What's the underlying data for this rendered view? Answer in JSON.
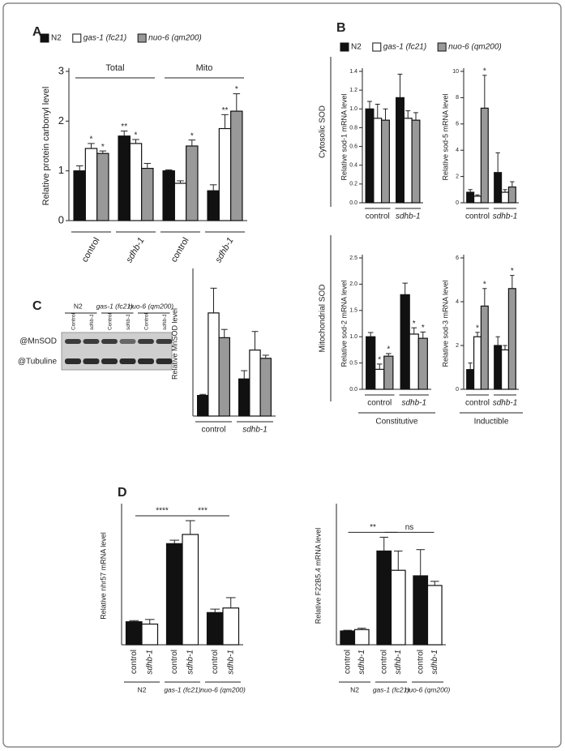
{
  "chart_data": [
    {
      "type": "bar",
      "panel": "A",
      "ylabel": "Relative protein carbonyl level",
      "legend": true,
      "groups": [
        "Total",
        "Mito"
      ],
      "categories": [
        "control",
        "sdhb-1",
        "control",
        "sdhb-1"
      ],
      "series": [
        {
          "name": "N2",
          "color": "#111111",
          "values": [
            1.0,
            1.7,
            1.0,
            0.6
          ],
          "errors": [
            0.1,
            0.1,
            0.02,
            0.12
          ],
          "stars": [
            null,
            "**",
            null,
            null
          ]
        },
        {
          "name": "gas-1 (fc21)",
          "color": "#ffffff",
          "values": [
            1.45,
            1.55,
            0.75,
            1.85
          ],
          "errors": [
            0.1,
            0.08,
            0.05,
            0.28
          ],
          "stars": [
            "*",
            "*",
            null,
            "**"
          ]
        },
        {
          "name": "nuo-6 (qm200)",
          "color": "#999999",
          "values": [
            1.35,
            1.05,
            1.5,
            2.2
          ],
          "errors": [
            0.05,
            0.1,
            0.12,
            0.35
          ],
          "stars": [
            "*",
            null,
            "*",
            "*"
          ]
        }
      ],
      "ylim": [
        0,
        3
      ],
      "yticks": [
        0,
        1,
        2,
        3
      ]
    },
    {
      "type": "bar",
      "panel": "B",
      "section": "Cytosolic SOD",
      "ylabel": "Relative sod-1 mRNA level",
      "legend": true,
      "categories": [
        "control",
        "sdhb-1"
      ],
      "series": [
        {
          "name": "N2",
          "color": "#111111",
          "values": [
            1.0,
            1.12
          ],
          "errors": [
            0.08,
            0.25
          ]
        },
        {
          "name": "gas-1 (fc21)",
          "color": "#ffffff",
          "values": [
            0.9,
            0.9
          ],
          "errors": [
            0.15,
            0.08
          ]
        },
        {
          "name": "nuo-6 (qm200)",
          "color": "#999999",
          "values": [
            0.88,
            0.88
          ],
          "errors": [
            0.12,
            0.08
          ]
        }
      ],
      "ylim": [
        0,
        1.4
      ],
      "yticks": [
        {
          "value": 0,
          "label": "0.0"
        },
        0.2,
        0.4,
        0.6,
        0.8,
        {
          "value": 1,
          "label": "1.0"
        },
        1.2,
        1.4
      ]
    },
    {
      "type": "bar",
      "ylabel": "Relative sod-5 mRNA level",
      "categories": [
        "control",
        "sdhb-1"
      ],
      "series": [
        {
          "name": "N2",
          "color": "#111111",
          "values": [
            0.8,
            2.3
          ],
          "errors": [
            0.2,
            1.5
          ]
        },
        {
          "name": "gas-1 (fc21)",
          "color": "#ffffff",
          "values": [
            0.5,
            0.8
          ],
          "errors": [
            0.1,
            0.2
          ]
        },
        {
          "name": "nuo-6 (qm200)",
          "color": "#999999",
          "values": [
            7.2,
            1.2
          ],
          "errors": [
            2.5,
            0.4
          ],
          "stars": [
            "*",
            null
          ]
        }
      ],
      "ylim": [
        0,
        10
      ],
      "yticks": [
        0,
        2,
        4,
        6,
        8,
        10
      ]
    },
    {
      "type": "bar",
      "section": "Mitochondrial SOD",
      "group_label": "Constitutive",
      "ylabel": "Relative sod-2 mRNA level",
      "categories": [
        "control",
        "sdhb-1"
      ],
      "series": [
        {
          "name": "N2",
          "color": "#111111",
          "values": [
            1.0,
            1.8
          ],
          "errors": [
            0.08,
            0.22
          ]
        },
        {
          "name": "gas-1 (fc21)",
          "color": "#ffffff",
          "values": [
            0.38,
            1.05
          ],
          "errors": [
            0.1,
            0.12
          ],
          "stars": [
            "*",
            "*"
          ]
        },
        {
          "name": "nuo-6 (qm200)",
          "color": "#999999",
          "values": [
            0.63,
            0.97
          ],
          "errors": [
            0.05,
            0.12
          ],
          "stars": [
            "*",
            "*"
          ]
        }
      ],
      "ylim": [
        0,
        2.5
      ],
      "yticks": [
        {
          "value": 0,
          "label": "0.0"
        },
        0.5,
        {
          "value": 1,
          "label": "1.0"
        },
        1.5,
        {
          "value": 2,
          "label": "2.0"
        },
        2.5
      ]
    },
    {
      "type": "bar",
      "group_label": "Inductible",
      "ylabel": "Relative sod-3 mRNA level",
      "categories": [
        "control",
        "sdhb-1"
      ],
      "series": [
        {
          "name": "N2",
          "color": "#111111",
          "values": [
            0.9,
            2.0
          ],
          "errors": [
            0.3,
            0.4
          ]
        },
        {
          "name": "gas-1 (fc21)",
          "color": "#ffffff",
          "values": [
            2.4,
            1.8
          ],
          "errors": [
            0.2,
            0.2
          ],
          "stars": [
            "*",
            null
          ]
        },
        {
          "name": "nuo-6 (qm200)",
          "color": "#999999",
          "values": [
            3.8,
            4.6
          ],
          "errors": [
            0.8,
            0.6
          ],
          "stars": [
            "*",
            "*"
          ]
        }
      ],
      "ylim": [
        0,
        6
      ],
      "yticks": [
        0,
        2,
        4,
        6
      ]
    },
    {
      "type": "bar",
      "panel": "C",
      "ylabel": "Relative MnSOD level",
      "categories": [
        "control",
        "sdhb-1"
      ],
      "series": [
        {
          "name": "N2",
          "color": "#111111",
          "values": [
            1.0,
            1.8
          ],
          "errors": [
            0.05,
            0.4
          ]
        },
        {
          "name": "gas-1 (fc21)",
          "color": "#ffffff",
          "values": [
            5.0,
            3.2
          ],
          "errors": [
            1.2,
            0.9
          ]
        },
        {
          "name": "nuo-6 (qm200)",
          "color": "#999999",
          "values": [
            3.8,
            2.8
          ],
          "errors": [
            0.4,
            0.15
          ]
        }
      ],
      "ylim": [
        0,
        7
      ]
    },
    {
      "type": "bar",
      "panel": "D",
      "ylabel": "Relative nhr57 mRNA level",
      "annotations": [
        "****",
        "***"
      ],
      "categories": [
        "N2",
        "gas-1 (fc21)",
        "nuo-6 (qm200)"
      ],
      "series": [
        {
          "name": "control",
          "color": "#111111",
          "values": [
            1.0,
            4.4,
            1.4
          ],
          "errors": [
            0.05,
            0.15,
            0.15
          ]
        },
        {
          "name": "sdhb-1",
          "color": "#ffffff",
          "values": [
            0.9,
            4.8,
            1.6
          ],
          "errors": [
            0.2,
            0.6,
            0.45
          ]
        }
      ],
      "ylim": [
        0,
        6
      ]
    },
    {
      "type": "bar",
      "ylabel": "Relative F22B5.4 mRNA level",
      "annotations": [
        "**",
        "ns"
      ],
      "categories": [
        "N2",
        "gas-1 (fc21)",
        "nuo-6 (qm200)"
      ],
      "series": [
        {
          "name": "control",
          "color": "#111111",
          "values": [
            1.0,
            6.8,
            5.0
          ],
          "errors": [
            0.05,
            1.0,
            1.9
          ]
        },
        {
          "name": "sdhb-1",
          "color": "#ffffff",
          "values": [
            1.1,
            5.4,
            4.3
          ],
          "errors": [
            0.1,
            1.4,
            0.3
          ]
        }
      ],
      "ylim": [
        0,
        10
      ]
    }
  ],
  "blot": {
    "strains": [
      "N2",
      "gas-1 (fc21)",
      "nuo-6 (qm200)"
    ],
    "lanes": [
      "Control",
      "sdhb-1",
      "Control",
      "sdhb-1",
      "Control",
      "sdhb-1"
    ],
    "rows": [
      "@MnSOD",
      "@Tubuline"
    ]
  }
}
